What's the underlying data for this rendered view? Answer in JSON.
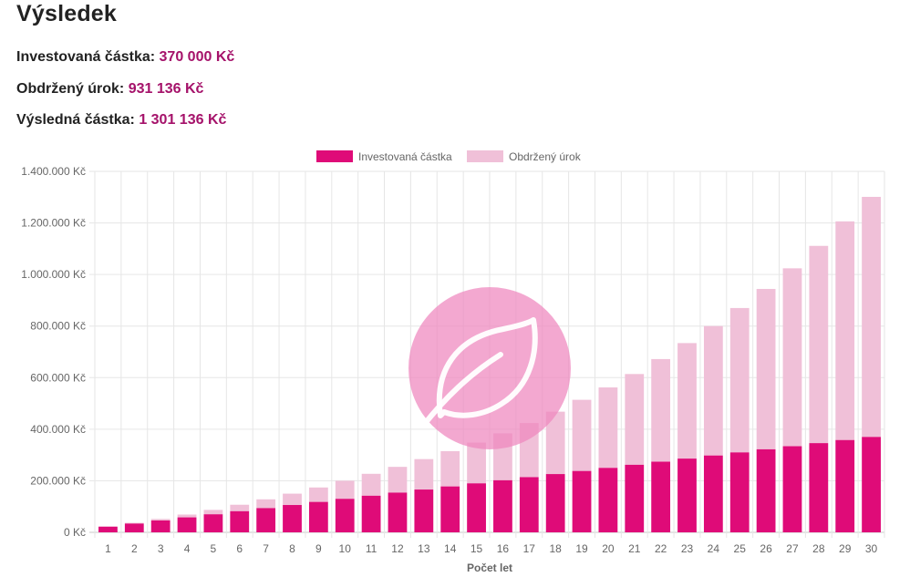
{
  "result": {
    "title": "Výsledek",
    "invested_label": "Investovaná částka:",
    "invested_value": "370 000 Kč",
    "interest_label": "Obdržený úrok:",
    "interest_value": "931 136 Kč",
    "final_label": "Výsledná částka:",
    "final_value": "1 301 136 Kč"
  },
  "colors": {
    "invested": "#df0b78",
    "interest": "#f0c0d8",
    "accent_text": "#a5126a",
    "watermark": "#ee86be"
  },
  "watermark_icon": "leaf-icon",
  "chart_data": {
    "type": "bar",
    "stacked": true,
    "xlabel": "Počet let",
    "ylabel": "",
    "ylim": [
      0,
      1400000
    ],
    "yticks": [
      0,
      200000,
      400000,
      600000,
      800000,
      1000000,
      1200000,
      1400000
    ],
    "ytick_labels": [
      "0 Kč",
      "200.000 Kč",
      "400.000 Kč",
      "600.000 Kč",
      "800.000 Kč",
      "1.000.000 Kč",
      "1.200.000 Kč",
      "1.400.000 Kč"
    ],
    "legend_position": "top-center",
    "grid": true,
    "categories": [
      "1",
      "2",
      "3",
      "4",
      "5",
      "6",
      "7",
      "8",
      "9",
      "10",
      "11",
      "12",
      "13",
      "14",
      "15",
      "16",
      "17",
      "18",
      "19",
      "20",
      "21",
      "22",
      "23",
      "24",
      "25",
      "26",
      "27",
      "28",
      "29",
      "30"
    ],
    "series": [
      {
        "name": "Investovaná částka",
        "color": "#df0b78",
        "values": [
          22000,
          34000,
          46000,
          58000,
          70000,
          82000,
          94000,
          106000,
          118000,
          130000,
          142000,
          154000,
          166000,
          178000,
          190000,
          202000,
          214000,
          226000,
          238000,
          250000,
          262000,
          274000,
          286000,
          298000,
          310000,
          322000,
          334000,
          346000,
          358000,
          370000
        ]
      },
      {
        "name": "Obdržený úrok",
        "color": "#f0c0d8",
        "values": [
          1000,
          3000,
          6000,
          11000,
          17000,
          25000,
          34000,
          44000,
          56000,
          70000,
          85000,
          100000,
          118000,
          137000,
          158000,
          182000,
          210000,
          242000,
          276000,
          312000,
          352000,
          398000,
          448000,
          502000,
          560000,
          622000,
          690000,
          765000,
          848000,
          931136
        ]
      }
    ]
  }
}
